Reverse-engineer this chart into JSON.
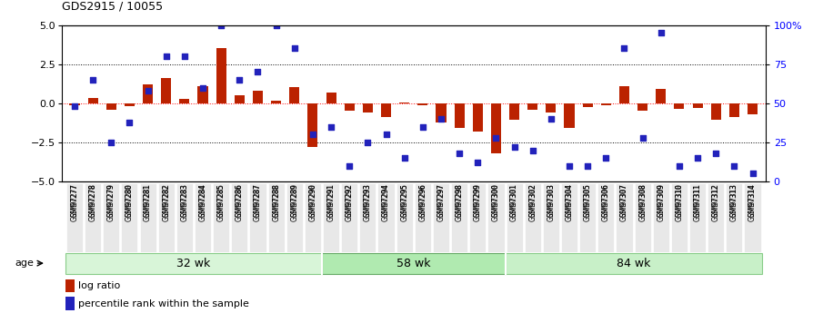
{
  "title": "GDS2915 / 10055",
  "samples": [
    "GSM97277",
    "GSM97278",
    "GSM97279",
    "GSM97280",
    "GSM97281",
    "GSM97282",
    "GSM97283",
    "GSM97284",
    "GSM97285",
    "GSM97286",
    "GSM97287",
    "GSM97288",
    "GSM97289",
    "GSM97290",
    "GSM97291",
    "GSM97292",
    "GSM97293",
    "GSM97294",
    "GSM97295",
    "GSM97296",
    "GSM97297",
    "GSM97298",
    "GSM97299",
    "GSM97300",
    "GSM97301",
    "GSM97302",
    "GSM97303",
    "GSM97304",
    "GSM97305",
    "GSM97306",
    "GSM97307",
    "GSM97308",
    "GSM97309",
    "GSM97310",
    "GSM97311",
    "GSM97312",
    "GSM97313",
    "GSM97314"
  ],
  "log_ratio": [
    -0.15,
    0.35,
    -0.4,
    -0.2,
    1.2,
    1.6,
    0.3,
    1.1,
    3.5,
    0.5,
    0.8,
    0.15,
    1.05,
    -2.8,
    0.7,
    -0.5,
    -0.6,
    -0.85,
    0.05,
    -0.1,
    -1.2,
    -1.55,
    -1.8,
    -3.2,
    -1.05,
    -0.4,
    -0.6,
    -1.55,
    -0.25,
    -0.1,
    1.1,
    -0.5,
    0.9,
    -0.35,
    -0.3,
    -1.05,
    -0.85,
    -0.7
  ],
  "percentile": [
    48,
    65,
    25,
    38,
    58,
    80,
    80,
    60,
    100,
    65,
    70,
    100,
    85,
    30,
    35,
    10,
    25,
    30,
    15,
    35,
    40,
    18,
    12,
    28,
    22,
    20,
    40,
    10,
    10,
    15,
    85,
    28,
    95,
    10,
    15,
    18,
    10,
    5
  ],
  "groups": [
    {
      "label": "32 wk",
      "start": 0,
      "end": 14
    },
    {
      "label": "58 wk",
      "start": 14,
      "end": 24
    },
    {
      "label": "84 wk",
      "start": 24,
      "end": 38
    }
  ],
  "group_colors_fill": [
    "#d8f5d8",
    "#b0eab0",
    "#c8f0c8"
  ],
  "group_colors_edge": [
    "#88cc88",
    "#66aa66",
    "#88cc88"
  ],
  "ylim": [
    -5,
    5
  ],
  "y2lim": [
    0,
    100
  ],
  "yticks_left": [
    -5,
    -2.5,
    0,
    2.5,
    5
  ],
  "yticks_right": [
    0,
    25,
    50,
    75,
    100
  ],
  "ytick_right_labels": [
    "0",
    "25",
    "50",
    "75",
    "100%"
  ],
  "bar_color": "#bb2200",
  "dot_color": "#2222bb",
  "bar_width": 0.55,
  "age_label": "age",
  "legend_bar_label": "log ratio",
  "legend_dot_label": "percentile rank within the sample"
}
